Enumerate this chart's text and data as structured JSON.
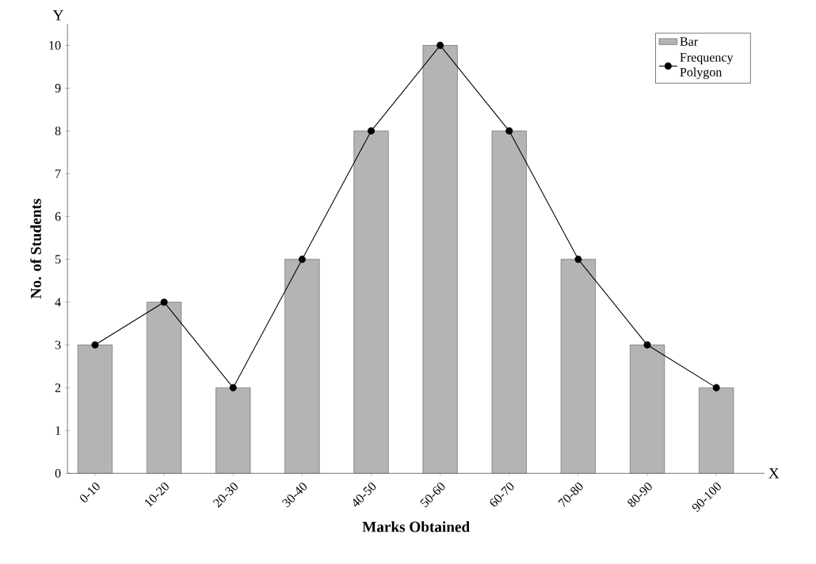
{
  "chart_data": {
    "type": "bar",
    "xlabel": "Marks Obtained",
    "ylabel": "No. of Students",
    "categories": [
      "0-10",
      "10-20",
      "20-30",
      "30-40",
      "40-50",
      "50-60",
      "60-70",
      "70-80",
      "80-90",
      "90-100"
    ],
    "series": [
      {
        "name": "Bar",
        "color": "#b4b4b4",
        "values": [
          3,
          4,
          2,
          5,
          8,
          10,
          8,
          5,
          3,
          2
        ]
      },
      {
        "name": "Frequency Polygon",
        "type": "line",
        "color": "#000000",
        "values": [
          3,
          4,
          2,
          5,
          8,
          10,
          8,
          5,
          3,
          2
        ]
      }
    ],
    "ylim": [
      0,
      10.5
    ],
    "yticks": [
      0,
      1,
      2,
      3,
      4,
      5,
      6,
      7,
      8,
      9,
      10
    ],
    "marker": "circle",
    "legend": "top right",
    "annotations": [
      "Y",
      "X"
    ]
  }
}
